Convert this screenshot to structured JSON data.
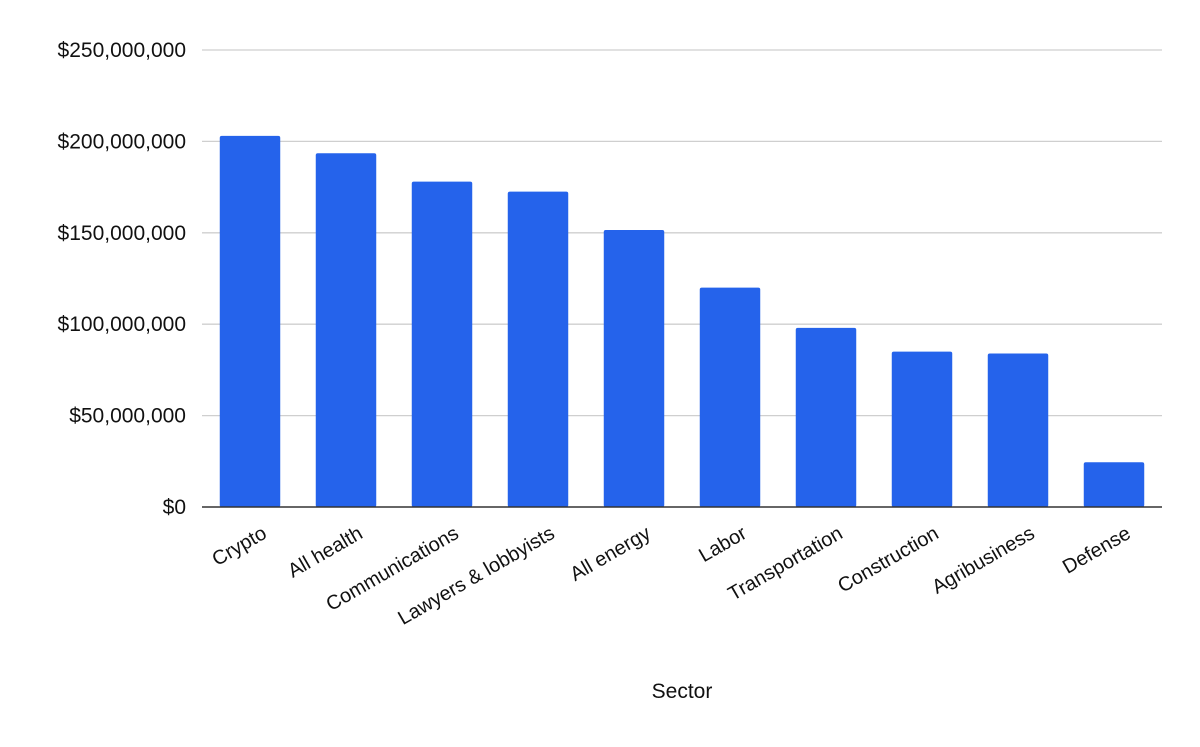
{
  "chart_data": {
    "type": "bar",
    "title": "",
    "xlabel": "Sector",
    "ylabel": "",
    "categories": [
      "Crypto",
      "All health",
      "Communications",
      "Lawyers & lobbyists",
      "All energy",
      "Labor",
      "Transportation",
      "Construction",
      "Agribusiness",
      "Defense"
    ],
    "values": [
      203000000,
      193500000,
      178000000,
      172500000,
      151500000,
      120000000,
      98000000,
      85000000,
      84000000,
      24500000
    ],
    "ylim": [
      0,
      250000000
    ],
    "y_ticks": [
      0,
      50000000,
      100000000,
      150000000,
      200000000,
      250000000
    ],
    "y_tick_labels": [
      "$0",
      "$50,000,000",
      "$100,000,000",
      "$150,000,000",
      "$200,000,000",
      "$250,000,000"
    ],
    "grid": true,
    "legend": "none",
    "bar_color": "#2563eb"
  }
}
